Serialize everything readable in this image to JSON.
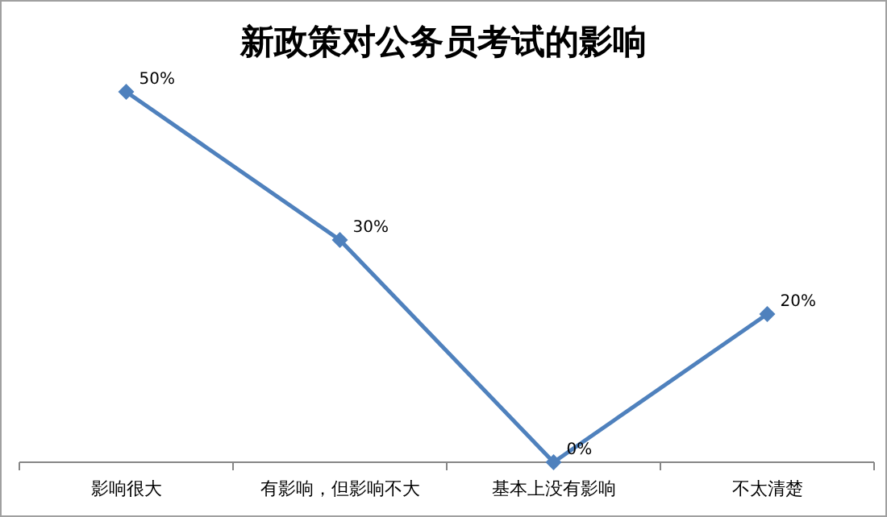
{
  "chart_data": {
    "type": "line",
    "title": "新政策对公务员考试的影响",
    "categories": [
      "影响很大",
      "有影响，但影响不大",
      "基本上没有影响",
      "不太清楚"
    ],
    "series": [
      {
        "color": "#4f81bd",
        "values": [
          50,
          30,
          0,
          20
        ],
        "value_labels": [
          "50%",
          "30%",
          "0%",
          "20%"
        ]
      }
    ],
    "marker": "diamond",
    "line_style": "solid",
    "grid": false
  }
}
